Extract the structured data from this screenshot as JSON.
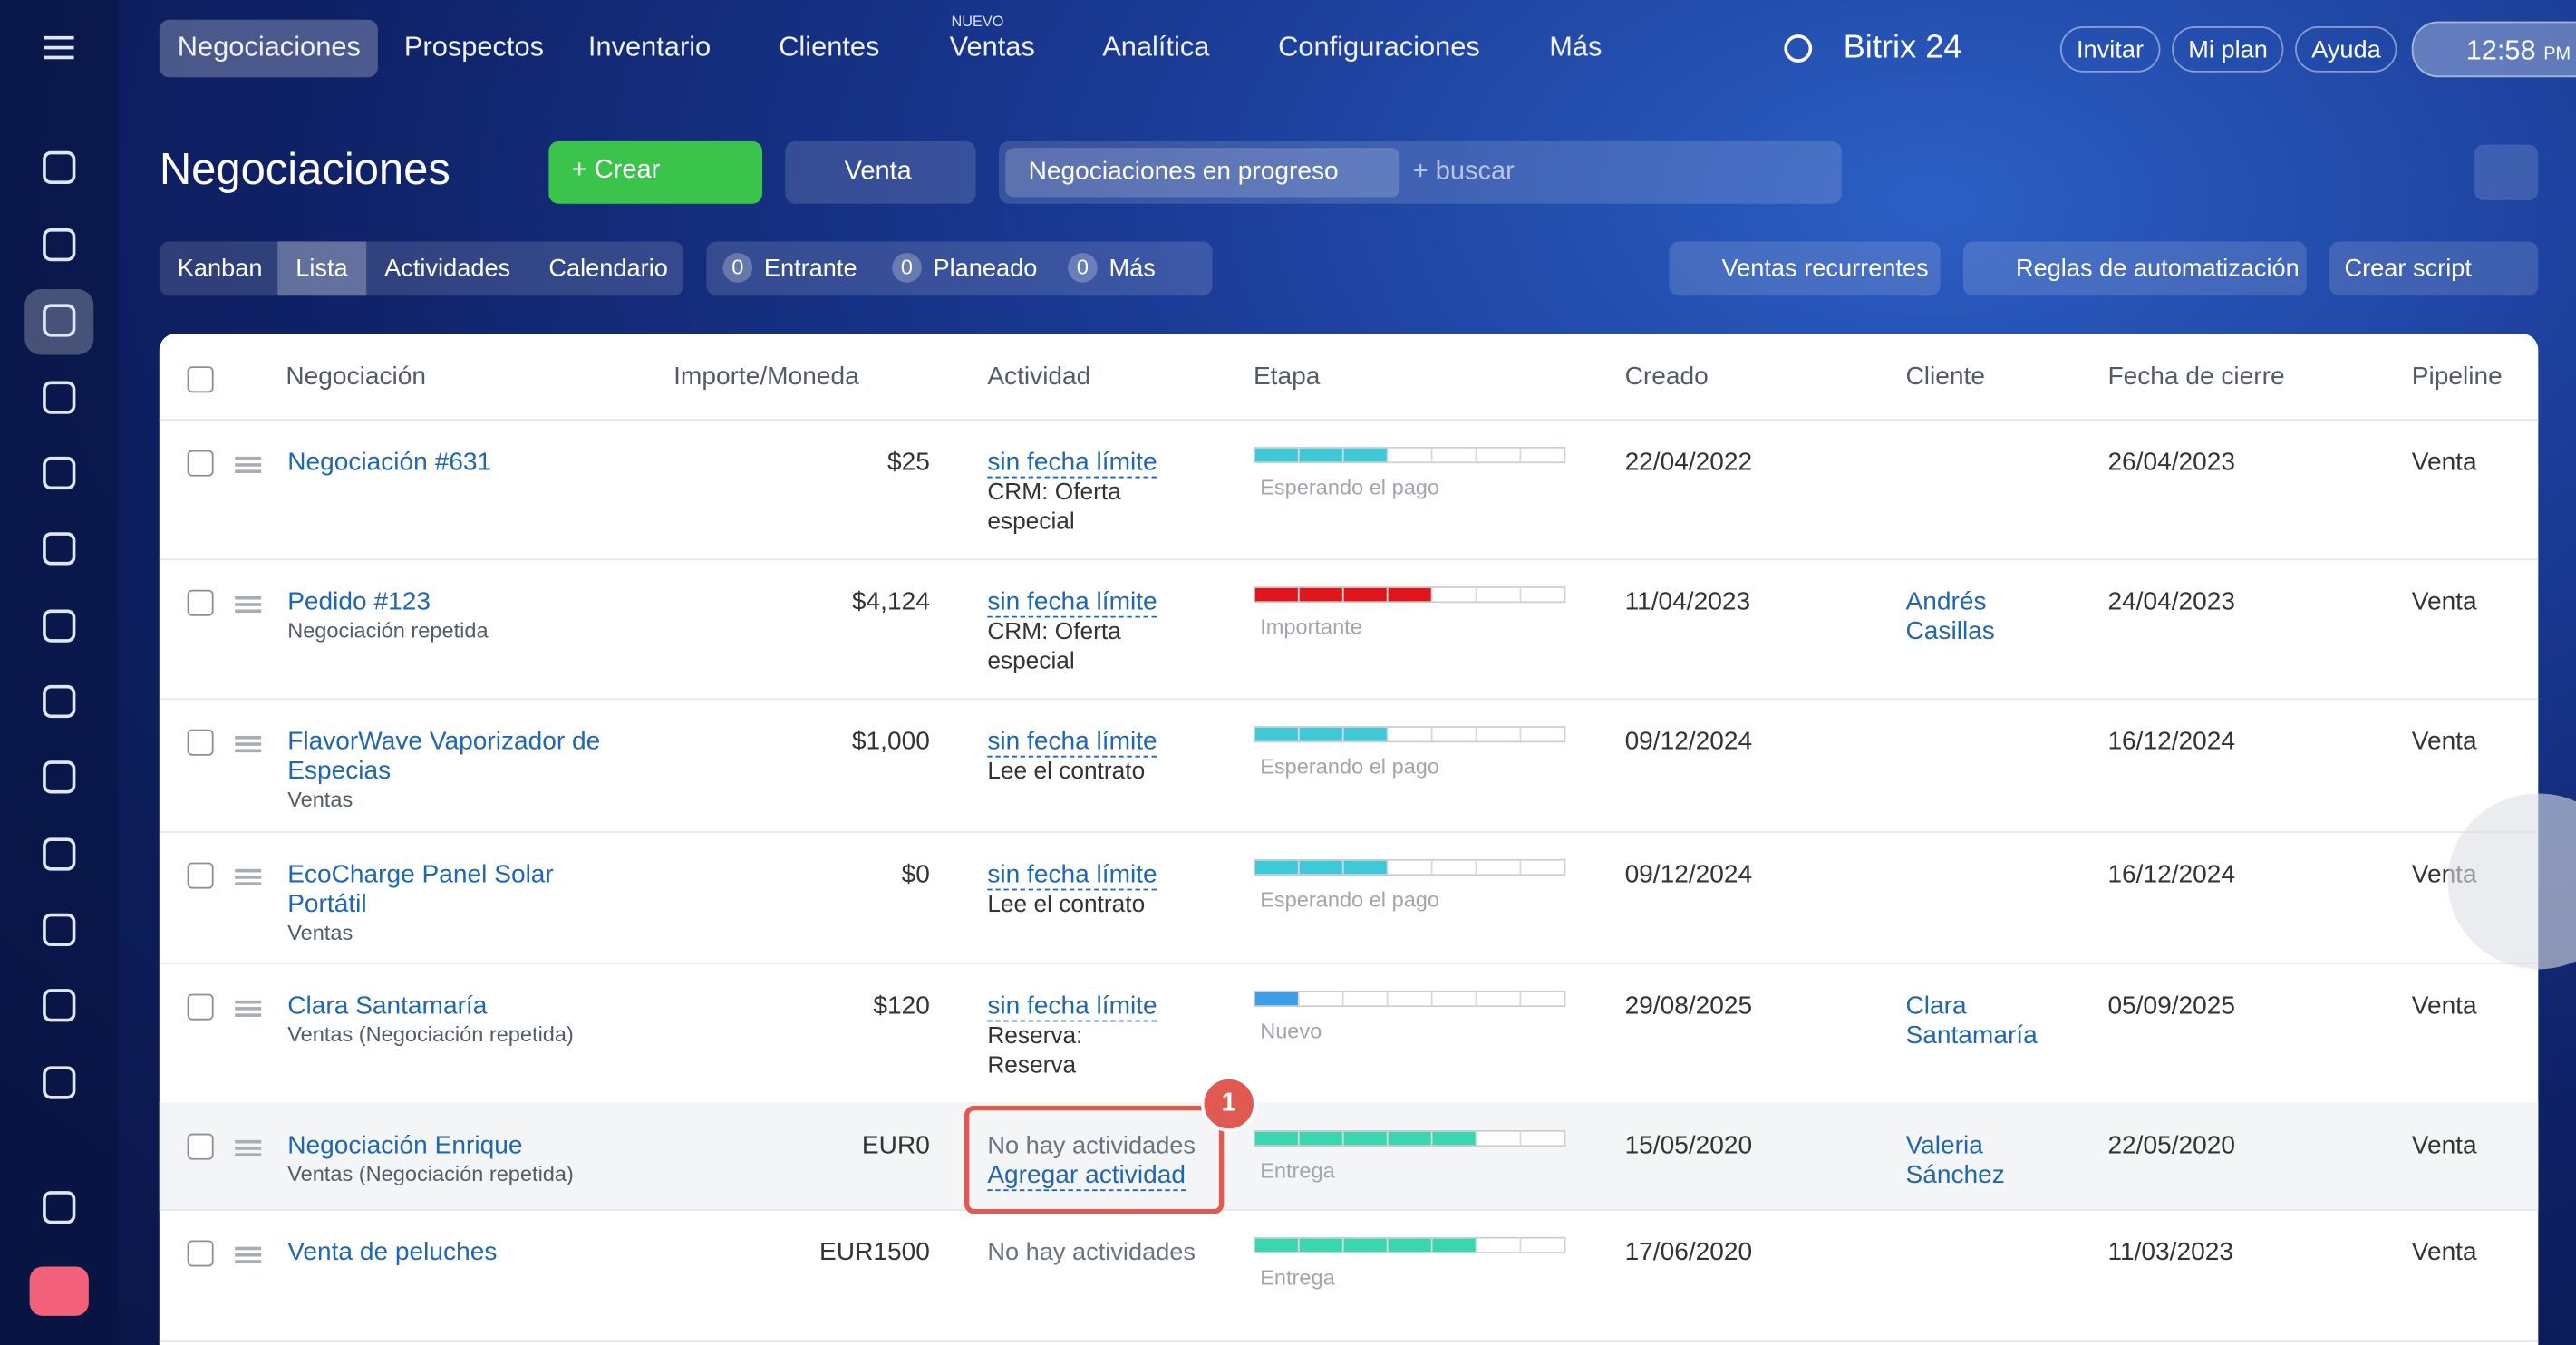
{
  "nav": {
    "items": [
      "Negociaciones",
      "Prospectos",
      "Inventario",
      "Clientes",
      "Ventas",
      "Analítica",
      "Configuraciones",
      "Más"
    ],
    "badge": "NUEVO",
    "brand": "Bitrix 24",
    "buttons": [
      "Invitar",
      "Mi plan",
      "Ayuda"
    ],
    "time": "12:58",
    "ampm": "PM"
  },
  "header": {
    "title": "Negociaciones",
    "create": "Crear",
    "pipeline": "Venta",
    "filter_tag": "Negociaciones en progreso",
    "search_placeholder": "+ buscar"
  },
  "views": [
    "Kanban",
    "Lista",
    "Actividades",
    "Calendario"
  ],
  "counters": [
    {
      "count": 0,
      "label": "Entrante"
    },
    {
      "count": 0,
      "label": "Planeado"
    },
    {
      "count": 0,
      "label": "Más"
    }
  ],
  "actions": [
    "Ventas recurrentes",
    "Reglas de automatización",
    "Crear script"
  ],
  "table": {
    "columns": [
      "Negociación",
      "Importe/Moneda",
      "Actividad",
      "Etapa",
      "Creado",
      "Cliente",
      "Fecha de cierre",
      "Pipeline"
    ],
    "rows": [
      {
        "name": "Negociación #631",
        "amount": "$25",
        "activity_link": "sin fecha límite",
        "activity_text": "CRM: Oferta especial",
        "stage": "Esperando el pago",
        "stage_color": "#3fc8d8",
        "stage_filled": 3,
        "created": "22/04/2022",
        "close": "26/04/2023",
        "pipeline": "Venta"
      },
      {
        "name": "Pedido #123",
        "subtitle": "Negociación repetida",
        "amount": "$4,124",
        "activity_link": "sin fecha límite",
        "activity_text": "CRM: Oferta especial",
        "stage": "Importante",
        "stage_color": "#e0161b",
        "stage_filled": 4,
        "created": "11/04/2023",
        "client": "Andrés Casillas",
        "close": "24/04/2023",
        "pipeline": "Venta"
      },
      {
        "name": "FlavorWave Vaporizador de Especias",
        "subtitle": "Ventas",
        "amount": "$1,000",
        "activity_link": "sin fecha límite",
        "activity_text": "Lee el contrato",
        "stage": "Esperando el pago",
        "stage_color": "#3fc8d8",
        "stage_filled": 3,
        "created": "09/12/2024",
        "close": "16/12/2024",
        "pipeline": "Venta"
      },
      {
        "name": "EcoCharge Panel Solar Portátil",
        "subtitle": "Ventas",
        "amount": "$0",
        "activity_link": "sin fecha límite",
        "activity_text": "Lee el contrato",
        "stage": "Esperando el pago",
        "stage_color": "#3fc8d8",
        "stage_filled": 3,
        "created": "09/12/2024",
        "close": "16/12/2024",
        "pipeline": "Venta"
      },
      {
        "name": "Clara Santamaría",
        "subtitle": "Ventas (Negociación repetida)",
        "amount": "$120",
        "activity_link": "sin fecha límite",
        "activity_text": "Reserva: Reserva",
        "stage": "Nuevo",
        "stage_color": "#3c9ee8",
        "stage_filled": 1,
        "created": "29/08/2025",
        "client": "Clara Santamaría",
        "close": "05/09/2025",
        "pipeline": "Venta"
      },
      {
        "name": "Negociación Enrique",
        "subtitle": "Ventas (Negociación repetida)",
        "amount": "EUR0",
        "activity_text": "No hay actividades",
        "activity_add": "Agregar actividad",
        "stage": "Entrega",
        "stage_color": "#3ad6b0",
        "stage_filled": 5,
        "created": "15/05/2020",
        "client": "Valeria Sánchez",
        "close": "22/05/2020",
        "pipeline": "Venta"
      },
      {
        "name": "Venta de peluches",
        "amount": "EUR1500",
        "activity_text": "No hay actividades",
        "stage": "Entrega",
        "stage_color": "#3ad6b0",
        "stage_filled": 5,
        "created": "17/06/2020",
        "close": "11/03/2023",
        "pipeline": "Venta"
      }
    ]
  },
  "callout": "1"
}
